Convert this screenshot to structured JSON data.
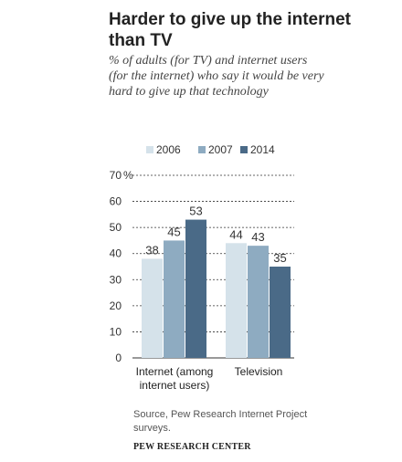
{
  "chart_data": {
    "type": "bar",
    "title": "Harder to give up the internet than TV",
    "subtitle": "% of adults (for TV) and internet users (for the internet) who say it would be very hard to give up that technology",
    "categories": [
      "Internet (among internet users)",
      "Television"
    ],
    "category_lines": [
      [
        "Internet (among",
        "internet users)"
      ],
      [
        "Television"
      ]
    ],
    "series": [
      {
        "name": "2006",
        "values": [
          38,
          44
        ],
        "color": "#d5e2ea"
      },
      {
        "name": "2007",
        "values": [
          45,
          43
        ],
        "color": "#8eabc1"
      },
      {
        "name": "2014",
        "values": [
          53,
          35
        ],
        "color": "#4a6a87"
      }
    ],
    "ylim": [
      0,
      70
    ],
    "yticks": [
      "0",
      "10",
      "20",
      "30",
      "40",
      "50",
      "60",
      "70"
    ],
    "ytick_top_suffix": "%",
    "grid": true,
    "legend_position": "top"
  },
  "source": "Source, Pew Research Internet Project surveys.",
  "footer": "PEW RESEARCH CENTER"
}
